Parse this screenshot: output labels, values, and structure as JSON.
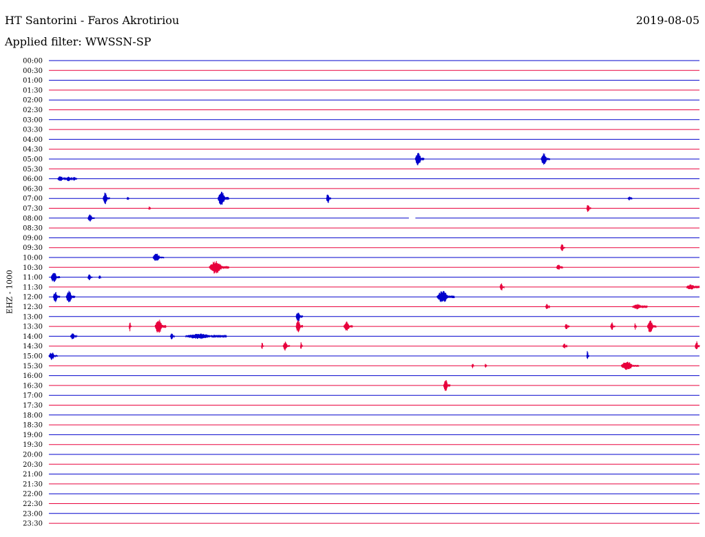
{
  "header": {
    "station": "HT Santorini - Faros Akrotiriou",
    "date": "2019-08-05",
    "filter": "Applied filter: WWSSN-SP"
  },
  "chart_data": {
    "type": "line",
    "ylabel": "EHZ - 1000",
    "colors": {
      "even": "#0000cc",
      "odd": "#e8003c"
    },
    "rows": [
      "00:00",
      "00:30",
      "01:00",
      "01:30",
      "02:00",
      "02:30",
      "03:00",
      "03:30",
      "04:00",
      "04:30",
      "05:00",
      "05:30",
      "06:00",
      "06:30",
      "07:00",
      "07:30",
      "08:00",
      "08:30",
      "09:00",
      "09:30",
      "10:00",
      "10:30",
      "11:00",
      "11:30",
      "12:00",
      "12:30",
      "13:00",
      "13:30",
      "14:00",
      "14:30",
      "15:00",
      "15:30",
      "16:00",
      "16:30",
      "17:00",
      "17:30",
      "18:00",
      "18:30",
      "19:00",
      "19:30",
      "20:00",
      "20:30",
      "21:00",
      "21:30",
      "22:00",
      "22:30",
      "23:00",
      "23:30"
    ],
    "minutes_per_row": 30,
    "events": [
      {
        "row": 10,
        "t": 16.9,
        "dur": 0.4,
        "amp": 10
      },
      {
        "row": 10,
        "t": 22.7,
        "dur": 0.4,
        "amp": 9
      },
      {
        "row": 12,
        "t": 0.4,
        "dur": 0.4,
        "amp": 4
      },
      {
        "row": 12,
        "t": 0.8,
        "dur": 0.3,
        "amp": 4
      },
      {
        "row": 12,
        "t": 1.1,
        "dur": 0.2,
        "amp": 3
      },
      {
        "row": 14,
        "t": 2.5,
        "dur": 0.3,
        "amp": 9
      },
      {
        "row": 14,
        "t": 3.6,
        "dur": 0.1,
        "amp": 3
      },
      {
        "row": 14,
        "t": 7.8,
        "dur": 0.5,
        "amp": 11
      },
      {
        "row": 14,
        "t": 12.8,
        "dur": 0.2,
        "amp": 8
      },
      {
        "row": 14,
        "t": 26.7,
        "dur": 0.2,
        "amp": 3
      },
      {
        "row": 15,
        "t": 4.6,
        "dur": 0.1,
        "amp": 3
      },
      {
        "row": 15,
        "t": 24.8,
        "dur": 0.2,
        "amp": 7
      },
      {
        "row": 16,
        "t": 1.8,
        "dur": 0.3,
        "amp": 6
      },
      {
        "row": 19,
        "t": 23.6,
        "dur": 0.2,
        "amp": 6
      },
      {
        "row": 20,
        "t": 4.8,
        "dur": 0.5,
        "amp": 6
      },
      {
        "row": 21,
        "t": 7.4,
        "dur": 0.9,
        "amp": 10
      },
      {
        "row": 21,
        "t": 23.4,
        "dur": 0.3,
        "amp": 4
      },
      {
        "row": 22,
        "t": 0.1,
        "dur": 0.4,
        "amp": 8
      },
      {
        "row": 22,
        "t": 1.8,
        "dur": 0.2,
        "amp": 6
      },
      {
        "row": 22,
        "t": 2.3,
        "dur": 0.1,
        "amp": 4
      },
      {
        "row": 23,
        "t": 20.8,
        "dur": 0.2,
        "amp": 6
      },
      {
        "row": 23,
        "t": 29.4,
        "dur": 0.6,
        "amp": 4
      },
      {
        "row": 24,
        "t": 0.2,
        "dur": 0.3,
        "amp": 8
      },
      {
        "row": 24,
        "t": 0.8,
        "dur": 0.4,
        "amp": 9
      },
      {
        "row": 24,
        "t": 17.9,
        "dur": 0.8,
        "amp": 9
      },
      {
        "row": 25,
        "t": 22.9,
        "dur": 0.2,
        "amp": 5
      },
      {
        "row": 25,
        "t": 26.9,
        "dur": 0.7,
        "amp": 4
      },
      {
        "row": 26,
        "t": 11.4,
        "dur": 0.3,
        "amp": 9
      },
      {
        "row": 27,
        "t": 3.7,
        "dur": 0.1,
        "amp": 8
      },
      {
        "row": 27,
        "t": 4.9,
        "dur": 0.5,
        "amp": 11
      },
      {
        "row": 27,
        "t": 11.4,
        "dur": 0.3,
        "amp": 10
      },
      {
        "row": 27,
        "t": 13.6,
        "dur": 0.4,
        "amp": 8
      },
      {
        "row": 27,
        "t": 23.8,
        "dur": 0.2,
        "amp": 5
      },
      {
        "row": 27,
        "t": 25.9,
        "dur": 0.2,
        "amp": 6
      },
      {
        "row": 27,
        "t": 27.0,
        "dur": 0.1,
        "amp": 5
      },
      {
        "row": 27,
        "t": 27.6,
        "dur": 0.4,
        "amp": 10
      },
      {
        "row": 28,
        "t": 1.0,
        "dur": 0.3,
        "amp": 5
      },
      {
        "row": 28,
        "t": 5.6,
        "dur": 0.2,
        "amp": 5
      },
      {
        "row": 28,
        "t": 6.3,
        "dur": 1.9,
        "amp": 4
      },
      {
        "row": 29,
        "t": 9.8,
        "dur": 0.1,
        "amp": 6
      },
      {
        "row": 29,
        "t": 10.8,
        "dur": 0.3,
        "amp": 7
      },
      {
        "row": 29,
        "t": 11.6,
        "dur": 0.1,
        "amp": 6
      },
      {
        "row": 29,
        "t": 23.7,
        "dur": 0.2,
        "amp": 4
      },
      {
        "row": 29,
        "t": 29.8,
        "dur": 0.2,
        "amp": 8
      },
      {
        "row": 30,
        "t": 0.0,
        "dur": 0.4,
        "amp": 6
      },
      {
        "row": 30,
        "t": 24.8,
        "dur": 0.1,
        "amp": 8
      },
      {
        "row": 31,
        "t": 19.5,
        "dur": 0.1,
        "amp": 4
      },
      {
        "row": 31,
        "t": 20.1,
        "dur": 0.1,
        "amp": 3
      },
      {
        "row": 31,
        "t": 26.4,
        "dur": 0.8,
        "amp": 7
      },
      {
        "row": 33,
        "t": 18.2,
        "dur": 0.3,
        "amp": 9
      }
    ],
    "gaps": [
      {
        "row": 16,
        "t": 16.6,
        "dur": 0.3
      }
    ]
  }
}
